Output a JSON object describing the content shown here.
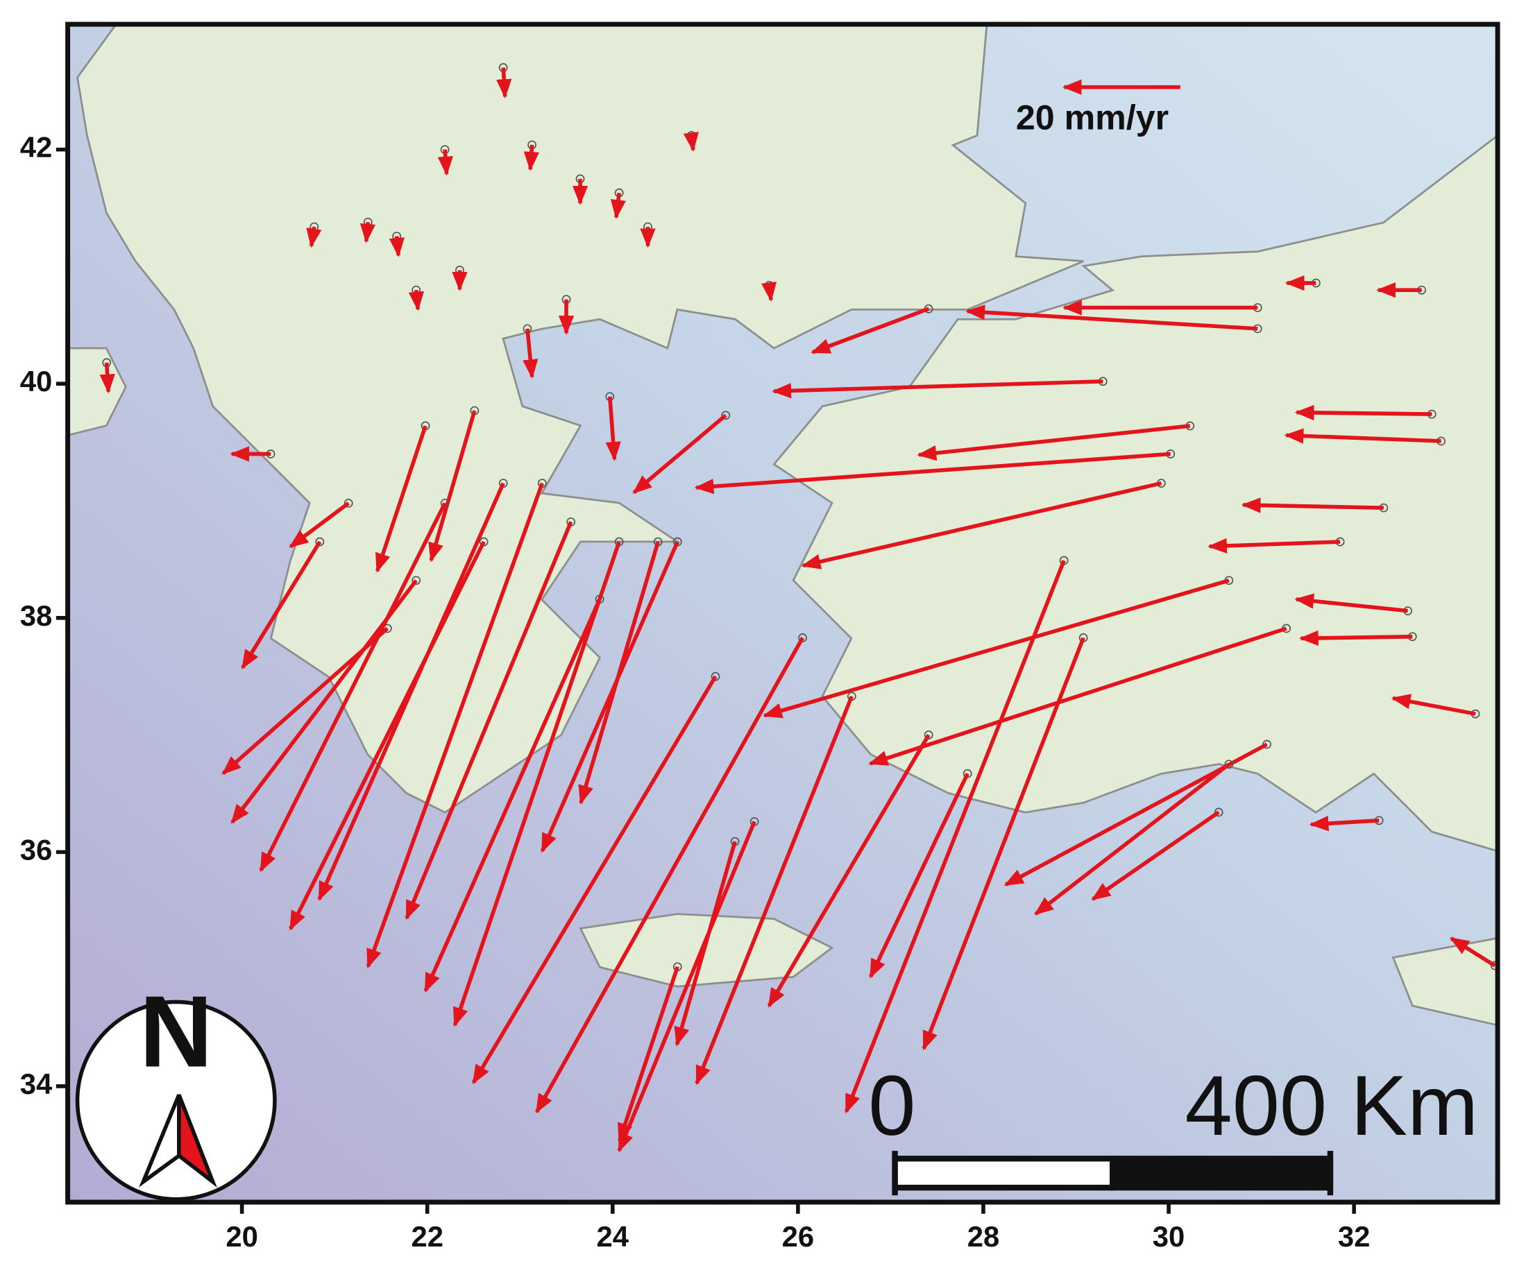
{
  "chart_data": {
    "type": "vector_map",
    "xlim": [
      18.12,
      33.55
    ],
    "ylim": [
      33.01,
      43.07
    ],
    "xticks": [
      20,
      22,
      24,
      26,
      28,
      30,
      32
    ],
    "yticks": [
      34,
      36,
      38,
      40,
      42
    ],
    "color": "#e3141c",
    "reference_vector": {
      "value": 20,
      "label": "20 mm/yr"
    },
    "scale_bar": {
      "start_label": "0",
      "end_label": "400 Km"
    },
    "north_label": "N",
    "vectors": {
      "lon": [
        32.84,
        32.94,
        32.32,
        31.85,
        32.58,
        32.63,
        33.31,
        32.27,
        33.52,
        30.96,
        30.96,
        29.29,
        30.23,
        30.02,
        27.41,
        29.92,
        30.65,
        31.27,
        31.06,
        30.65,
        30.54,
        28.87,
        29.08,
        27.41,
        27.83,
        25.53,
        26.58,
        24.7,
        24.07,
        25.11,
        26.05,
        25.22,
        23.97,
        23.08,
        23.5,
        21.98,
        22.51,
        21.15,
        23.24,
        22.61,
        21.88,
        21.57,
        23.86,
        24.49,
        20.84,
        20.31,
        22.82,
        22.19,
        23.55,
        25.32,
        24.7,
        22.19,
        22.82,
        23.13,
        20.78,
        23.65,
        24.07,
        24.85,
        24.38,
        21.88,
        25.69,
        22.35,
        21.67,
        21.36,
        18.54,
        32.73,
        31.59
      ],
      "lat": [
        39.74,
        39.51,
        38.94,
        38.65,
        38.06,
        37.84,
        37.18,
        36.27,
        35.03,
        40.65,
        40.47,
        40.02,
        39.64,
        39.4,
        40.64,
        39.15,
        38.32,
        37.91,
        36.92,
        36.75,
        36.34,
        38.49,
        37.83,
        37.0,
        36.67,
        36.26,
        37.33,
        38.65,
        38.65,
        37.5,
        37.83,
        39.73,
        39.89,
        40.47,
        40.72,
        39.64,
        39.77,
        38.98,
        39.15,
        38.65,
        38.32,
        37.91,
        38.16,
        38.65,
        38.65,
        39.4,
        39.15,
        38.98,
        38.82,
        36.09,
        35.02,
        42.0,
        42.7,
        42.04,
        41.34,
        41.75,
        41.63,
        42.12,
        41.34,
        40.8,
        40.84,
        40.97,
        41.26,
        41.38,
        40.18,
        40.8,
        40.86
      ],
      "ve": [
        -23.3,
        -26.7,
        -24.2,
        -22.5,
        -19.2,
        -19.2,
        -14.2,
        -11.7,
        -7.5,
        -33.3,
        -50.0,
        -56.7,
        -46.7,
        -81.7,
        -20.0,
        -61.7,
        -80.0,
        -71.7,
        -45.0,
        -33.3,
        -21.7,
        -37.5,
        -27.5,
        -27.5,
        -16.7,
        -23.3,
        -26.7,
        -23.3,
        -28.3,
        -41.7,
        -45.8,
        -15.8,
        0.8,
        0.8,
        0,
        -8.3,
        -7.5,
        -10.0,
        -30.0,
        -33.3,
        -31.7,
        -28.3,
        -30.0,
        -13.3,
        -13.3,
        -6.7,
        -31.7,
        -31.7,
        -28.3,
        -10.0,
        -10.0,
        0.3,
        0.3,
        -0.3,
        -0.5,
        0,
        -0.5,
        0.3,
        0,
        0.3,
        0.3,
        0,
        0.3,
        -0.3,
        0.3,
        -7.5,
        -5.0
      ],
      "vn": [
        0.3,
        1.0,
        0.5,
        -0.8,
        2.0,
        -0.3,
        2.7,
        -0.7,
        4.7,
        0,
        3.0,
        -1.7,
        -5.0,
        -5.8,
        -7.5,
        -14.2,
        -23.3,
        -23.3,
        -24.2,
        -25.8,
        -15.0,
        -95.0,
        -70.8,
        -46.7,
        -35.0,
        -56.7,
        -66.7,
        -53.3,
        -83.3,
        -70.0,
        -81.7,
        -13.3,
        -10.8,
        -8.3,
        -5.8,
        -25.0,
        -25.8,
        -7.5,
        -83.3,
        -66.7,
        -41.7,
        -25.0,
        -67.5,
        -45.0,
        -21.7,
        0,
        -71.7,
        -63.3,
        -68.3,
        -35.0,
        -30.0,
        -4.2,
        -5.0,
        -4.2,
        -3.3,
        -4.2,
        -4.2,
        -2.5,
        -3.3,
        -3.3,
        -2.5,
        -3.3,
        -3.3,
        -3.3,
        -5.0,
        0,
        0
      ]
    }
  }
}
